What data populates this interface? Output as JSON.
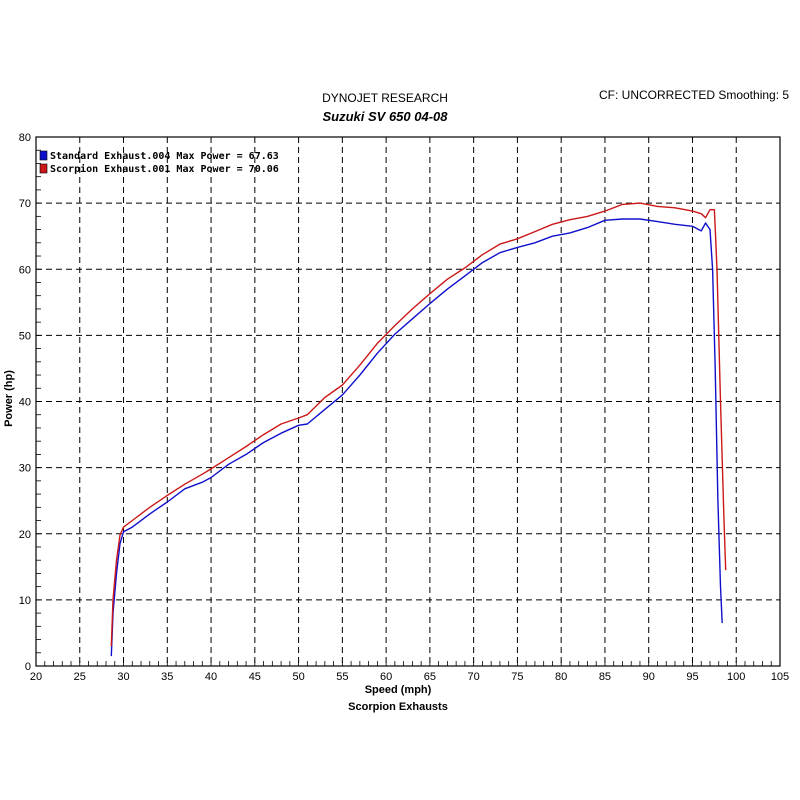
{
  "header": {
    "title": "DYNOJET RESEARCH",
    "subtitle": "Suzuki SV 650 04-08",
    "cf_info": "CF: UNCORRECTED  Smoothing: 5"
  },
  "chart_data": {
    "type": "line",
    "xlabel": "Speed (mph)",
    "ylabel": "Power (hp)",
    "footer": "Scorpion Exhausts",
    "xlim": [
      20,
      105
    ],
    "ylim": [
      0,
      80
    ],
    "xticks": [
      20,
      25,
      30,
      35,
      40,
      45,
      50,
      55,
      60,
      65,
      70,
      75,
      80,
      85,
      90,
      95,
      100,
      105
    ],
    "yticks": [
      0,
      10,
      20,
      30,
      40,
      50,
      60,
      70,
      80
    ],
    "grid": true,
    "legend": "top-left",
    "series": [
      {
        "name": "Standard Exhaust.004 Max Power = 67.63",
        "color": "#1010cc",
        "x": [
          28.6,
          28.8,
          29.2,
          29.6,
          30.0,
          31.0,
          33.0,
          35.0,
          37.0,
          39.0,
          40.0,
          42.0,
          44.0,
          46.0,
          48.0,
          50.0,
          51.0,
          53.0,
          55.0,
          57.0,
          59.0,
          61.0,
          63.0,
          65.0,
          67.0,
          69.0,
          71.0,
          73.0,
          75.0,
          77.0,
          79.0,
          81.0,
          83.0,
          85.0,
          87.0,
          89.0,
          91.0,
          93.0,
          95.0,
          96.0,
          96.5,
          97.0,
          97.3,
          97.6,
          97.9,
          98.2,
          98.4
        ],
        "y": [
          1.5,
          8.0,
          14.0,
          18.5,
          20.3,
          21.0,
          23.0,
          24.8,
          26.8,
          27.8,
          28.5,
          30.5,
          32.0,
          33.8,
          35.2,
          36.4,
          36.6,
          38.8,
          41.0,
          44.0,
          47.3,
          50.2,
          52.5,
          54.8,
          57.0,
          59.0,
          61.0,
          62.5,
          63.3,
          64.0,
          65.0,
          65.5,
          66.3,
          67.4,
          67.6,
          67.6,
          67.2,
          66.8,
          66.5,
          65.8,
          67.0,
          66.0,
          60.0,
          45.0,
          25.0,
          12.0,
          6.5
        ]
      },
      {
        "name": "Scorpion Exhaust.001 Max Power = 70.06",
        "color": "#cc1818",
        "x": [
          28.6,
          28.8,
          29.2,
          29.6,
          30.0,
          31.0,
          33.0,
          35.0,
          37.0,
          39.0,
          40.0,
          42.0,
          44.0,
          46.0,
          48.0,
          50.0,
          51.0,
          53.0,
          55.0,
          57.0,
          59.0,
          61.0,
          63.0,
          65.0,
          67.0,
          69.0,
          71.0,
          73.0,
          75.0,
          77.0,
          79.0,
          81.0,
          83.0,
          85.0,
          87.0,
          89.0,
          91.0,
          93.0,
          95.0,
          96.0,
          96.5,
          97.0,
          97.5,
          97.8,
          98.2,
          98.6,
          98.8
        ],
        "y": [
          3.0,
          10.0,
          16.0,
          19.8,
          21.0,
          22.0,
          24.0,
          25.8,
          27.5,
          29.0,
          29.8,
          31.5,
          33.2,
          35.0,
          36.6,
          37.5,
          38.0,
          40.6,
          42.5,
          45.5,
          48.8,
          51.5,
          54.0,
          56.3,
          58.5,
          60.2,
          62.2,
          63.8,
          64.6,
          65.7,
          66.8,
          67.5,
          68.0,
          68.8,
          69.8,
          70.0,
          69.5,
          69.3,
          68.8,
          68.4,
          67.8,
          69.0,
          69.0,
          60.0,
          40.0,
          22.0,
          14.5
        ]
      }
    ]
  }
}
